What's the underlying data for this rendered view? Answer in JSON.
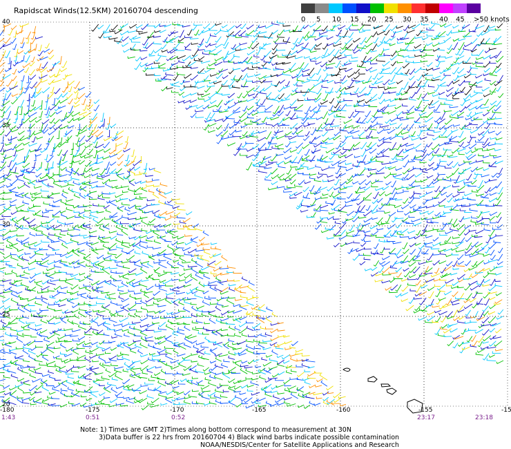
{
  "title": "Rapidscat Winds(12.5KM) 20160704 descending",
  "legend": {
    "labels": [
      "0",
      "5",
      "10",
      "15",
      "20",
      "25",
      "30",
      "35",
      "40",
      "45",
      ">50 knots"
    ],
    "colors": [
      "#404040",
      "#8a8a8a",
      "#00c8ff",
      "#0050ff",
      "#1010c8",
      "#00c000",
      "#f0e000",
      "#ff9000",
      "#ff3030",
      "#c00000",
      "#ff00ff",
      "#c040ff",
      "#5a00a0"
    ]
  },
  "lat_labels": [
    "40",
    "35",
    "30",
    "25",
    "20"
  ],
  "lon_labels": [
    "-180",
    "-175",
    "-170",
    "-165",
    "-160",
    "-155",
    "-15"
  ],
  "time_labels": [
    "1:43",
    "0:51",
    "0:52",
    "23:17",
    "23:18"
  ],
  "notes": [
    "Note: 1) Times are GMT 2)Times along bottom correspond to measurement at 30N",
    "3)Data buffer is 22 hrs from 20160704 4) Black wind barbs indicate possible contamination",
    "NOAA/NESDIS/Center for Satellite Applications and Research"
  ]
}
